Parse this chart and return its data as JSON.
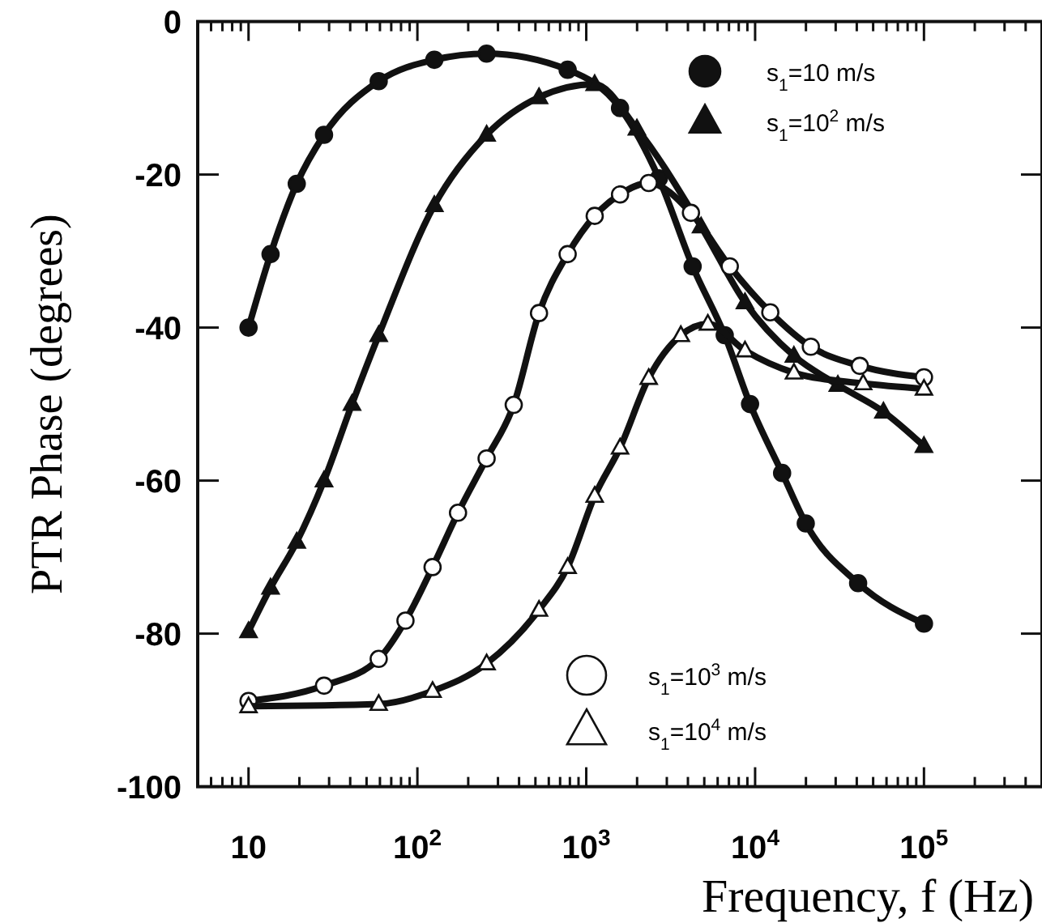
{
  "chart_data": {
    "type": "line",
    "xlabel": "Frequency, f (Hz)",
    "ylabel": "PTR Phase (degrees)",
    "log": "x",
    "xlim": [
      5,
      500000
    ],
    "ylim": [
      -100,
      0
    ],
    "xticks": [
      {
        "value": 6,
        "label": null
      },
      {
        "value": 7,
        "label": null
      },
      {
        "value": 8,
        "label": null
      },
      {
        "value": 9,
        "label": null
      },
      {
        "value": 10,
        "label": "10"
      },
      {
        "value": 20,
        "label": null
      },
      {
        "value": 30,
        "label": null
      },
      {
        "value": 40,
        "label": null
      },
      {
        "value": 50,
        "label": null
      },
      {
        "value": 60,
        "label": null
      },
      {
        "value": 70,
        "label": null
      },
      {
        "value": 80,
        "label": null
      },
      {
        "value": 90,
        "label": null
      },
      {
        "value": 100,
        "label": "10$^{2}$"
      },
      {
        "value": 200,
        "label": null
      },
      {
        "value": 300,
        "label": null
      },
      {
        "value": 400,
        "label": null
      },
      {
        "value": 500,
        "label": null
      },
      {
        "value": 600,
        "label": null
      },
      {
        "value": 700,
        "label": null
      },
      {
        "value": 800,
        "label": null
      },
      {
        "value": 900,
        "label": null
      },
      {
        "value": 1000,
        "label": "10$^{3}$"
      },
      {
        "value": 2000,
        "label": null
      },
      {
        "value": 3000,
        "label": null
      },
      {
        "value": 4000,
        "label": null
      },
      {
        "value": 5000,
        "label": null
      },
      {
        "value": 6000,
        "label": null
      },
      {
        "value": 7000,
        "label": null
      },
      {
        "value": 8000,
        "label": null
      },
      {
        "value": 9000,
        "label": null
      },
      {
        "value": 10000,
        "label": "10$^{4}$"
      },
      {
        "value": 20000,
        "label": null
      },
      {
        "value": 30000,
        "label": null
      },
      {
        "value": 40000,
        "label": null
      },
      {
        "value": 50000,
        "label": null
      },
      {
        "value": 60000,
        "label": null
      },
      {
        "value": 70000,
        "label": null
      },
      {
        "value": 80000,
        "label": null
      },
      {
        "value": 90000,
        "label": null
      },
      {
        "value": 100000,
        "label": "10$^{5}$"
      },
      {
        "value": 200000,
        "label": null
      },
      {
        "value": 300000,
        "label": null
      },
      {
        "value": 400000,
        "label": null
      }
    ],
    "yticks": [
      0,
      -20,
      -40,
      -60,
      -80,
      -100
    ],
    "grid": false,
    "legend": "right",
    "line_style": "solid",
    "series": [
      {
        "name": "s$_{1}$=10 m/s",
        "color": "#111111",
        "marker": "circle",
        "x": [
          10,
          13.5,
          19.3,
          28,
          59,
          126,
          257,
          776,
          1585,
          2692,
          4266,
          6607,
          9333,
          14450,
          19950,
          40740,
          100000
        ],
        "values": [
          -40,
          -30.4,
          -21.2,
          -14.8,
          -7.8,
          -5,
          -4.2,
          -6.3,
          -11.3,
          -20.5,
          -32,
          -41,
          -50,
          -59,
          -65.6,
          -73.4,
          -78.7
        ]
      },
      {
        "name": "s$_{1}$=10$^{2}$ m/s",
        "color": "#111111",
        "marker": "triangle",
        "x": [
          10,
          13.5,
          19.3,
          28,
          41,
          59,
          126,
          257,
          525,
          1122,
          1995,
          4786,
          8710,
          16980,
          30900,
          57540,
          100000
        ],
        "values": [
          -79.7,
          -74,
          -68,
          -60,
          -50,
          -41,
          -24,
          -14.8,
          -9.9,
          -8.2,
          -14,
          -26.8,
          -36.7,
          -43.7,
          -47.5,
          -51,
          -55.5
        ]
      },
      {
        "name": "s$_{1}$=10$^{3}$ m/s",
        "color": "#ffffff",
        "marker": "circle",
        "x": [
          10,
          28,
          59,
          85,
          123,
          174,
          257,
          372,
          525,
          776,
          1122,
          1585,
          2344,
          4169,
          7079,
          12300,
          21380,
          41690,
          100000
        ],
        "values": [
          -88.8,
          -86.8,
          -83.3,
          -78.3,
          -71.3,
          -64.2,
          -57.1,
          -50.1,
          -38.1,
          -30.4,
          -25.4,
          -22.6,
          -21.1,
          -25,
          -32,
          -38,
          -42.5,
          -45,
          -46.5
        ]
      },
      {
        "name": "s$_{1}$=10$^{4}$ m/s",
        "color": "#ffffff",
        "marker": "triangle",
        "x": [
          10,
          59,
          123,
          257,
          525,
          776,
          1122,
          1585,
          2344,
          3631,
          5248,
          8710,
          16980,
          43650,
          100000
        ],
        "values": [
          -89.5,
          -89.2,
          -87.5,
          -83.9,
          -76.9,
          -71.3,
          -62,
          -55.7,
          -46.6,
          -41,
          -39.5,
          -43,
          -45.9,
          -47.3,
          -48
        ]
      }
    ]
  }
}
